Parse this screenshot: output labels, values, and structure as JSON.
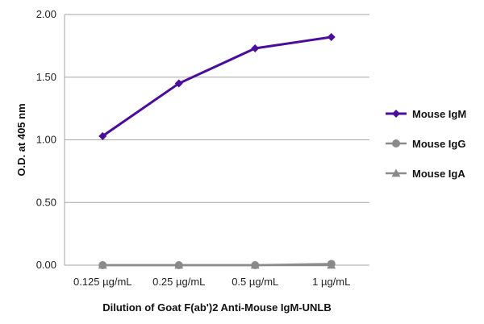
{
  "chart_data": {
    "type": "line",
    "title": "",
    "xlabel": "Dilution of Goat F(ab')2 Anti-Mouse IgM-UNLB",
    "ylabel": "O.D. at 405 nm",
    "categories": [
      "0.125 µg/mL",
      "0.25 µg/mL",
      "0.5 µg/mL",
      "1 µg/mL"
    ],
    "ylim": [
      0,
      2.0
    ],
    "yticks": [
      "0.00",
      "0.50",
      "1.00",
      "1.50",
      "2.00"
    ],
    "grid": true,
    "legend_position": "right",
    "series": [
      {
        "name": "Mouse IgM",
        "values": [
          1.03,
          1.45,
          1.73,
          1.82
        ],
        "color": "#4b0d9c",
        "marker": "diamond"
      },
      {
        "name": "Mouse IgG",
        "values": [
          0.0,
          0.0,
          0.0,
          0.01
        ],
        "color": "#8a8a8a",
        "marker": "circle"
      },
      {
        "name": "Mouse IgA",
        "values": [
          0.0,
          0.0,
          0.0,
          0.0
        ],
        "color": "#8a8a8a",
        "marker": "triangle"
      }
    ]
  }
}
